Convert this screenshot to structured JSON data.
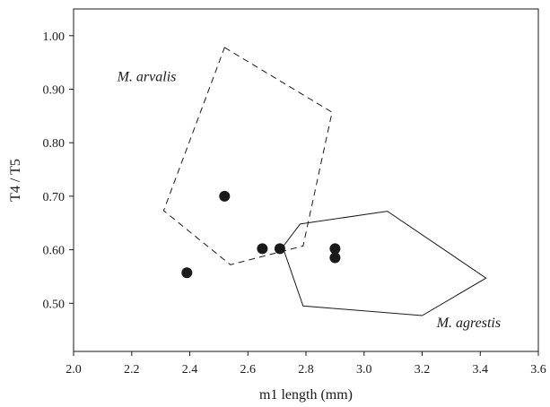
{
  "chart_data": {
    "type": "scatter",
    "title": "",
    "xlabel": "m1 length (mm)",
    "ylabel": "T4 / T5",
    "xlim": [
      2.0,
      3.6
    ],
    "ylim": [
      0.41,
      1.05
    ],
    "x_ticks": [
      2.0,
      2.2,
      2.4,
      2.6,
      2.8,
      3.0,
      3.2,
      3.4,
      3.6
    ],
    "x_tick_labels": [
      "2.0",
      "2.2",
      "2.4",
      "2.6",
      "2.8",
      "3.0",
      "3.2",
      "3.4",
      "3.6"
    ],
    "y_ticks": [
      0.5,
      0.6,
      0.7,
      0.8,
      0.9,
      1.0
    ],
    "y_tick_labels": [
      "0.50",
      "0.60",
      "0.70",
      "0.80",
      "0.90",
      "1.00"
    ],
    "grid": false,
    "legend": "none",
    "points": [
      {
        "x": 2.39,
        "y": 0.557
      },
      {
        "x": 2.52,
        "y": 0.7
      },
      {
        "x": 2.65,
        "y": 0.602
      },
      {
        "x": 2.71,
        "y": 0.602
      },
      {
        "x": 2.9,
        "y": 0.602
      },
      {
        "x": 2.9,
        "y": 0.585
      }
    ],
    "polygons": [
      {
        "label": "M. arvalis",
        "style": "dashed",
        "vertices": [
          [
            2.52,
            0.978
          ],
          [
            2.89,
            0.857
          ],
          [
            2.79,
            0.607
          ],
          [
            2.54,
            0.572
          ],
          [
            2.31,
            0.673
          ]
        ]
      },
      {
        "label": "M. agrestis",
        "style": "solid",
        "vertices": [
          [
            2.78,
            0.648
          ],
          [
            3.08,
            0.672
          ],
          [
            3.42,
            0.547
          ],
          [
            3.2,
            0.477
          ],
          [
            2.79,
            0.495
          ],
          [
            2.72,
            0.605
          ]
        ]
      }
    ],
    "annotations": [
      {
        "text": "M. arvalis",
        "x": 2.15,
        "y": 0.915
      },
      {
        "text": "M. agrestis",
        "x": 3.25,
        "y": 0.455
      }
    ]
  }
}
